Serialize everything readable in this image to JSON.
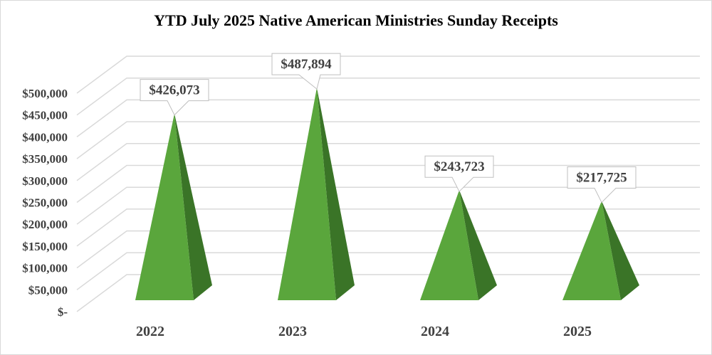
{
  "chart_data": {
    "type": "bar",
    "subtype": "3d-pyramid",
    "title": "YTD July 2025 Native American Ministries Sunday Receipts",
    "categories": [
      "2022",
      "2023",
      "2024",
      "2025"
    ],
    "values": [
      426073,
      487894,
      243723,
      217725
    ],
    "data_labels": [
      "$426,073",
      "$487,894",
      "$243,723",
      "$217,725"
    ],
    "ylim": [
      0,
      500000
    ],
    "yticks": [
      0,
      50000,
      100000,
      150000,
      200000,
      250000,
      300000,
      350000,
      400000,
      450000,
      500000
    ],
    "ytick_labels": [
      "$-",
      "$50,000",
      "$100,000",
      "$150,000",
      "$200,000",
      "$250,000",
      "$300,000",
      "$350,000",
      "$400,000",
      "$450,000",
      "$500,000"
    ],
    "grid": true,
    "legend": "none",
    "colors": {
      "front": "#5aa63c",
      "side": "#3a7427",
      "grid": "#d9d9d9",
      "text": "#404040"
    }
  }
}
